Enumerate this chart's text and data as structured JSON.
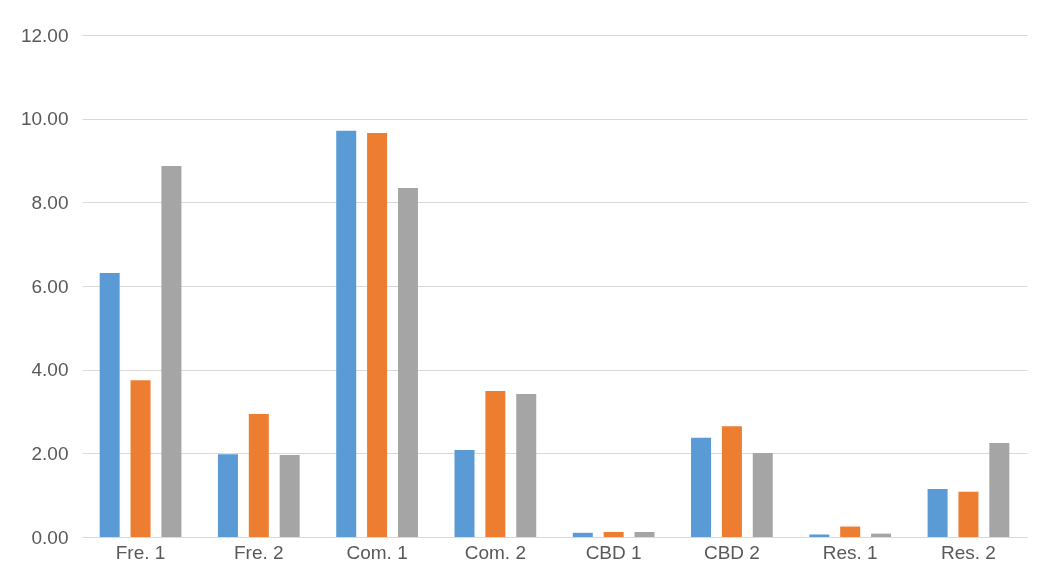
{
  "chart_data": {
    "type": "bar",
    "categories": [
      "Fre. 1",
      "Fre. 2",
      "Com. 1",
      "Com. 2",
      "CBD 1",
      "CBD 2",
      "Res. 1",
      "Res. 2"
    ],
    "series": [
      {
        "color": "#5b9bd5",
        "values": [
          6.31,
          1.98,
          9.71,
          2.08,
          0.1,
          2.37,
          0.06,
          1.15
        ]
      },
      {
        "color": "#ed7d31",
        "values": [
          3.75,
          2.94,
          9.66,
          3.49,
          0.12,
          2.65,
          0.25,
          1.08
        ]
      },
      {
        "color": "#a5a5a5",
        "values": [
          8.87,
          1.96,
          8.34,
          3.42,
          0.12,
          2.01,
          0.08,
          2.25
        ]
      }
    ],
    "ylim": [
      0,
      12
    ],
    "yticks": [
      {
        "value": 0,
        "label": "0.00"
      },
      {
        "value": 2,
        "label": "2.00"
      },
      {
        "value": 4,
        "label": "4.00"
      },
      {
        "value": 6,
        "label": "6.00"
      },
      {
        "value": 8,
        "label": "8.00"
      },
      {
        "value": 10,
        "label": "10.00"
      },
      {
        "value": 12,
        "label": "12.00"
      }
    ],
    "grid": "y",
    "legend": false
  }
}
